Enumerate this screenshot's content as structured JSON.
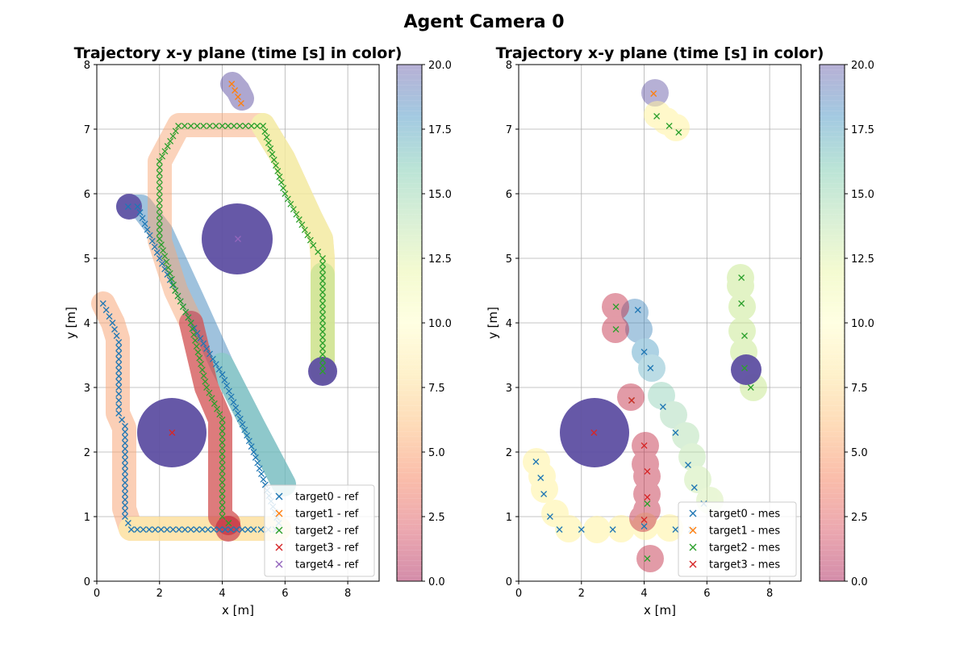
{
  "figure": {
    "suptitle": "Agent Camera 0"
  },
  "colorbar": {
    "ticks": [
      "0.0",
      "2.5",
      "5.0",
      "7.5",
      "10.0",
      "12.5",
      "15.0",
      "17.5",
      "20.0"
    ],
    "range": [
      0,
      20
    ],
    "colormap": "Spectral",
    "alpha": 0.4
  },
  "series_colors": {
    "target0": "#1f77b4",
    "target1": "#ff7f0e",
    "target2": "#2ca02c",
    "target3": "#d62728",
    "target4": "#9467bd"
  },
  "chart_data": [
    {
      "type": "scatter",
      "title": "Trajectory x-y plane  (time [s] in color)",
      "xlabel": "x [m]",
      "ylabel": "y [m]",
      "xlim": [
        0,
        9
      ],
      "ylim": [
        0,
        8
      ],
      "xticks": [
        "0",
        "2",
        "4",
        "6",
        "8"
      ],
      "yticks": [
        "0",
        "1",
        "2",
        "3",
        "4",
        "5",
        "6",
        "7",
        "8"
      ],
      "grid": true,
      "legend_position": "bottom-right",
      "legend": [
        "target0 - ref",
        "target1 - ref",
        "target2 - ref",
        "target3 - ref",
        "target4 - ref"
      ],
      "series": [
        {
          "name": "target0 - ref",
          "points": [
            [
              0.2,
              4.3
            ],
            [
              0.5,
              4.0
            ],
            [
              0.7,
              3.7
            ],
            [
              0.7,
              3.0
            ],
            [
              0.7,
              2.6
            ],
            [
              0.9,
              2.4
            ],
            [
              0.9,
              1.0
            ],
            [
              1.1,
              0.8
            ],
            [
              3.0,
              0.8
            ],
            [
              5.0,
              0.8
            ],
            [
              5.7,
              0.8
            ]
          ]
        },
        {
          "name": "target0 - ref",
          "points": [
            [
              1.0,
              5.8
            ],
            [
              1.3,
              5.8
            ],
            [
              2.0,
              5.0
            ],
            [
              3.0,
              4.0
            ],
            [
              4.0,
              3.2
            ],
            [
              5.0,
              2.0
            ],
            [
              5.8,
              0.9
            ]
          ]
        },
        {
          "name": "target1 - ref",
          "points": [
            [
              4.3,
              7.7
            ],
            [
              4.4,
              7.6
            ],
            [
              4.5,
              7.5
            ],
            [
              4.6,
              7.4
            ]
          ]
        },
        {
          "name": "target2 - ref",
          "points": [
            [
              4.2,
              0.9
            ],
            [
              4.0,
              1.0
            ],
            [
              4.0,
              2.5
            ],
            [
              3.5,
              3.0
            ],
            [
              3.0,
              4.0
            ],
            [
              2.5,
              4.5
            ],
            [
              2.0,
              5.3
            ],
            [
              2.0,
              6.5
            ],
            [
              2.6,
              7.05
            ],
            [
              4.0,
              7.05
            ],
            [
              5.3,
              7.05
            ],
            [
              6.0,
              6.0
            ],
            [
              6.9,
              5.2
            ],
            [
              7.2,
              5.0
            ],
            [
              7.2,
              3.25
            ]
          ]
        },
        {
          "name": "target3 - ref",
          "points": [
            [
              2.4,
              2.3
            ]
          ]
        },
        {
          "name": "target4 - ref",
          "points": [
            [
              4.5,
              5.3
            ]
          ]
        }
      ]
    },
    {
      "type": "scatter",
      "title": "Trajectory x-y plane  (time [s] in color)",
      "xlabel": "x [m]",
      "ylabel": "y [m]",
      "xlim": [
        0,
        9
      ],
      "ylim": [
        0,
        8
      ],
      "xticks": [
        "0",
        "2",
        "4",
        "6",
        "8"
      ],
      "yticks": [
        "0",
        "1",
        "2",
        "3",
        "4",
        "5",
        "6",
        "7",
        "8"
      ],
      "grid": true,
      "legend_position": "bottom-right",
      "legend": [
        "target0 - mes",
        "target1 - mes",
        "target2 - mes",
        "target3 - mes"
      ],
      "series": [
        {
          "name": "target0 - mes",
          "points": [
            [
              0.55,
              1.85
            ],
            [
              0.7,
              1.6
            ],
            [
              0.8,
              1.35
            ],
            [
              1.0,
              1.0
            ],
            [
              1.3,
              0.8
            ],
            [
              2.0,
              0.8
            ],
            [
              3.0,
              0.8
            ],
            [
              4.0,
              0.85
            ],
            [
              5.0,
              0.8
            ],
            [
              5.5,
              0.8
            ],
            [
              3.8,
              4.2
            ],
            [
              4.0,
              3.55
            ],
            [
              4.2,
              3.3
            ],
            [
              4.6,
              2.7
            ],
            [
              5.0,
              2.3
            ],
            [
              5.4,
              1.8
            ],
            [
              5.6,
              1.45
            ],
            [
              5.9,
              1.2
            ]
          ]
        },
        {
          "name": "target1 - mes",
          "points": [
            [
              4.3,
              7.55
            ]
          ]
        },
        {
          "name": "target2 - mes",
          "points": [
            [
              4.4,
              7.2
            ],
            [
              4.8,
              7.05
            ],
            [
              5.1,
              6.95
            ],
            [
              3.1,
              4.25
            ],
            [
              3.1,
              3.9
            ],
            [
              3.6,
              2.8
            ],
            [
              7.1,
              4.7
            ],
            [
              7.1,
              4.3
            ],
            [
              7.2,
              3.8
            ],
            [
              7.2,
              3.3
            ],
            [
              7.4,
              3.0
            ],
            [
              4.1,
              0.35
            ],
            [
              4.1,
              1.2
            ]
          ]
        },
        {
          "name": "target3 - mes",
          "points": [
            [
              2.4,
              2.3
            ],
            [
              3.6,
              2.8
            ],
            [
              4.0,
              2.1
            ],
            [
              4.1,
              1.7
            ],
            [
              4.1,
              1.3
            ],
            [
              4.0,
              0.95
            ]
          ]
        }
      ]
    }
  ]
}
